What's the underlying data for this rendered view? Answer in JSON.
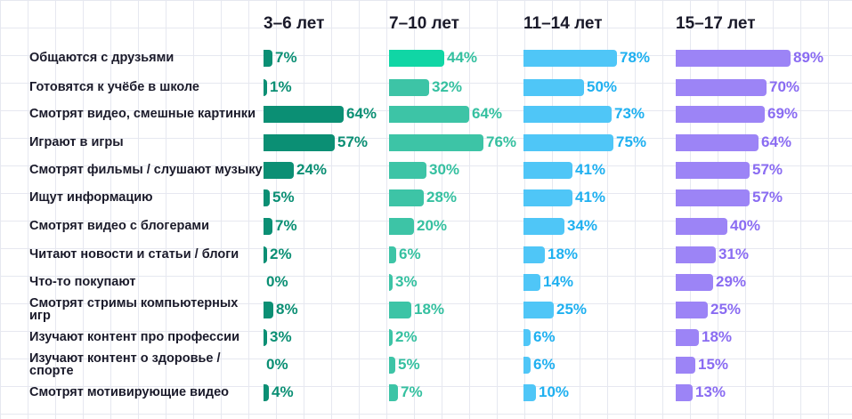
{
  "chart_data": {
    "type": "bar",
    "columns": [
      "3–6 лет",
      "7–10 лет",
      "11–14 лет",
      "15–17 лет"
    ],
    "categories": [
      "Общаются с друзьями",
      "Готовятся к учёбе в школе",
      "Смотрят видео, смешные картинки",
      "Играют в игры",
      "Смотрят фильмы / слушают музыку",
      "Ищут информацию",
      "Смотрят видео с блогерами",
      "Читают новости и статьи / блоги",
      "Что-то покупают",
      "Смотрят стримы компьютерных игр",
      "Изучают контент про профессии",
      "Изучают контент о здоровье / спорте",
      "Смотрят мотивирующие видео"
    ],
    "series": [
      {
        "values": [
          7,
          1,
          64,
          57,
          24,
          5,
          7,
          2,
          0,
          8,
          3,
          0,
          4
        ],
        "labels": [
          "7%",
          "1%",
          "64%",
          "57%",
          "24%",
          "5%",
          "7%",
          "2%",
          "0%",
          "8%",
          "3%",
          "0%",
          "4%"
        ],
        "color": "#0b8f74",
        "label_color": "#0b8f74"
      },
      {
        "values": [
          44,
          32,
          64,
          76,
          30,
          28,
          20,
          6,
          3,
          18,
          2,
          5,
          7
        ],
        "labels": [
          "44%",
          "32%",
          "64%",
          "76%",
          "30%",
          "28%",
          "20%",
          "6%",
          "3%",
          "18%",
          "2%",
          "5%",
          "7%"
        ],
        "color": "#3dc4a6",
        "highlight_color": "#10d6a5",
        "highlight_index": 0,
        "label_color": "#35c0a0"
      },
      {
        "values": [
          78,
          50,
          73,
          75,
          41,
          41,
          34,
          18,
          14,
          25,
          6,
          6,
          10
        ],
        "labels": [
          "78%",
          "50%",
          "73%",
          "75%",
          "41%",
          "41%",
          "34%",
          "18%",
          "14%",
          "25%",
          "6%",
          "6%",
          "10%"
        ],
        "color": "#4fc6f7",
        "label_color": "#1fb0f0"
      },
      {
        "values": [
          89,
          70,
          69,
          64,
          57,
          57,
          40,
          31,
          29,
          25,
          18,
          15,
          13
        ],
        "labels": [
          "89%",
          "70%",
          "69%",
          "64%",
          "57%",
          "57%",
          "40%",
          "31%",
          "29%",
          "25%",
          "18%",
          "15%",
          "13%"
        ],
        "color": "#9c84f6",
        "label_color": "#8a6cf2"
      }
    ]
  }
}
